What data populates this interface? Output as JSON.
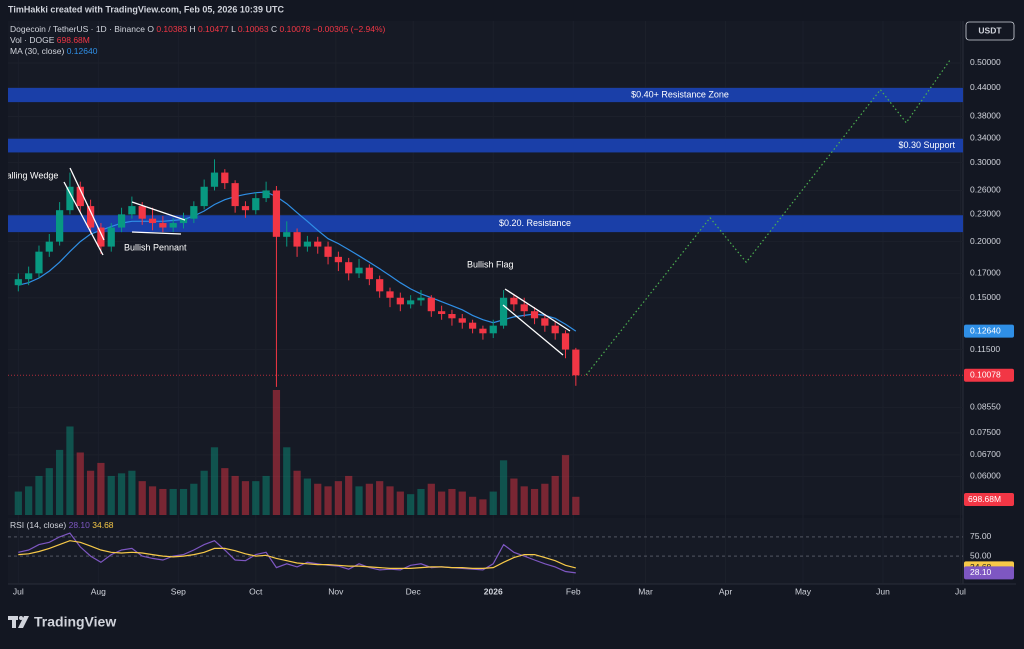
{
  "watermark": "TimHakki created with TradingView.com, Feb 05, 2026 10:39 UTC",
  "logo": "TradingView",
  "currency": "USDT",
  "chart_data": {
    "type": "candlestick",
    "symbol": "Dogecoin / TetherUS · 1D · Binance",
    "ohlc": [
      {
        "label": "O",
        "value": "0.10383"
      },
      {
        "label": "H",
        "value": "0.10477"
      },
      {
        "label": "L",
        "value": "0.10063"
      },
      {
        "label": "C",
        "value": "0.10078"
      }
    ],
    "change": "−0.00305 (−2.94%)",
    "x": [
      "2025-07-01",
      "2025-07-05",
      "2025-07-09",
      "2025-07-13",
      "2025-07-17",
      "2025-07-21",
      "2025-07-25",
      "2025-07-29",
      "2025-08-02",
      "2025-08-06",
      "2025-08-10",
      "2025-08-14",
      "2025-08-18",
      "2025-08-22",
      "2025-08-26",
      "2025-08-30",
      "2025-09-03",
      "2025-09-07",
      "2025-09-11",
      "2025-09-15",
      "2025-09-19",
      "2025-09-23",
      "2025-09-27",
      "2025-10-01",
      "2025-10-05",
      "2025-10-09",
      "2025-10-13",
      "2025-10-17",
      "2025-10-21",
      "2025-10-25",
      "2025-10-29",
      "2025-11-02",
      "2025-11-06",
      "2025-11-10",
      "2025-11-14",
      "2025-11-18",
      "2025-11-22",
      "2025-11-26",
      "2025-11-30",
      "2025-12-04",
      "2025-12-08",
      "2025-12-12",
      "2025-12-16",
      "2025-12-20",
      "2025-12-24",
      "2025-12-28",
      "2026-01-01",
      "2026-01-05",
      "2026-01-09",
      "2026-01-13",
      "2026-01-17",
      "2026-01-21",
      "2026-01-25",
      "2026-01-29",
      "2026-02-02"
    ],
    "open": [
      0.16,
      0.165,
      0.17,
      0.19,
      0.2,
      0.235,
      0.265,
      0.24,
      0.215,
      0.195,
      0.215,
      0.23,
      0.24,
      0.225,
      0.22,
      0.215,
      0.22,
      0.225,
      0.24,
      0.265,
      0.285,
      0.27,
      0.24,
      0.235,
      0.25,
      0.26,
      0.205,
      0.21,
      0.195,
      0.2,
      0.195,
      0.185,
      0.18,
      0.17,
      0.175,
      0.165,
      0.155,
      0.15,
      0.145,
      0.148,
      0.15,
      0.14,
      0.138,
      0.135,
      0.132,
      0.128,
      0.125,
      0.13,
      0.15,
      0.145,
      0.14,
      0.135,
      0.13,
      0.125,
      0.115
    ],
    "high": [
      0.17,
      0.176,
      0.196,
      0.208,
      0.245,
      0.285,
      0.272,
      0.248,
      0.22,
      0.22,
      0.238,
      0.252,
      0.245,
      0.238,
      0.228,
      0.226,
      0.232,
      0.246,
      0.275,
      0.305,
      0.29,
      0.274,
      0.246,
      0.258,
      0.272,
      0.266,
      0.222,
      0.214,
      0.206,
      0.205,
      0.2,
      0.19,
      0.184,
      0.183,
      0.178,
      0.168,
      0.158,
      0.154,
      0.152,
      0.156,
      0.152,
      0.144,
      0.141,
      0.138,
      0.134,
      0.13,
      0.134,
      0.156,
      0.153,
      0.15,
      0.143,
      0.138,
      0.133,
      0.127,
      0.116
    ],
    "low": [
      0.155,
      0.16,
      0.166,
      0.185,
      0.196,
      0.23,
      0.232,
      0.208,
      0.188,
      0.19,
      0.21,
      0.225,
      0.218,
      0.212,
      0.21,
      0.21,
      0.214,
      0.22,
      0.236,
      0.26,
      0.262,
      0.232,
      0.226,
      0.23,
      0.245,
      0.095,
      0.195,
      0.185,
      0.19,
      0.188,
      0.178,
      0.172,
      0.164,
      0.166,
      0.16,
      0.15,
      0.143,
      0.14,
      0.142,
      0.144,
      0.136,
      0.134,
      0.13,
      0.128,
      0.125,
      0.121,
      0.122,
      0.128,
      0.14,
      0.136,
      0.131,
      0.126,
      0.121,
      0.11,
      0.0955
    ],
    "close": [
      0.165,
      0.17,
      0.19,
      0.2,
      0.235,
      0.265,
      0.24,
      0.215,
      0.195,
      0.215,
      0.23,
      0.24,
      0.225,
      0.22,
      0.215,
      0.22,
      0.225,
      0.24,
      0.265,
      0.285,
      0.27,
      0.24,
      0.235,
      0.25,
      0.26,
      0.205,
      0.21,
      0.195,
      0.2,
      0.195,
      0.185,
      0.18,
      0.17,
      0.175,
      0.165,
      0.155,
      0.15,
      0.145,
      0.148,
      0.15,
      0.14,
      0.138,
      0.135,
      0.132,
      0.128,
      0.125,
      0.13,
      0.15,
      0.145,
      0.14,
      0.135,
      0.13,
      0.125,
      0.115,
      0.10078
    ],
    "up_color": "#089981",
    "down_color": "#f23645",
    "ma": {
      "title": "MA (30, close)",
      "color": "#2f8fe6",
      "last": {
        "value": 0.1264,
        "label": "0.12640"
      },
      "values": [
        0.16,
        0.162,
        0.166,
        0.172,
        0.18,
        0.19,
        0.2,
        0.208,
        0.212,
        0.216,
        0.22,
        0.222,
        0.222,
        0.222,
        0.222,
        0.223,
        0.224,
        0.228,
        0.234,
        0.242,
        0.248,
        0.252,
        0.255,
        0.257,
        0.258,
        0.252,
        0.243,
        0.232,
        0.222,
        0.212,
        0.203,
        0.198,
        0.192,
        0.186,
        0.18,
        0.174,
        0.168,
        0.162,
        0.157,
        0.153,
        0.15,
        0.147,
        0.144,
        0.141,
        0.137,
        0.134,
        0.132,
        0.134,
        0.136,
        0.137,
        0.138,
        0.137,
        0.135,
        0.131,
        0.1264
      ]
    },
    "volume": {
      "title": "Vol · DOGE",
      "last": {
        "value": 698.68,
        "label": "698.68M"
      },
      "values": [
        900,
        1100,
        1500,
        1800,
        2500,
        3400,
        2400,
        1700,
        2000,
        1500,
        1600,
        1700,
        1300,
        1100,
        1000,
        1000,
        1000,
        1200,
        1700,
        2600,
        1800,
        1500,
        1300,
        1300,
        1500,
        4800,
        2600,
        1700,
        1400,
        1200,
        1100,
        1300,
        1500,
        1100,
        1200,
        1300,
        1100,
        900,
        800,
        1000,
        1200,
        900,
        1000,
        900,
        700,
        600,
        900,
        2100,
        1400,
        1100,
        1000,
        1200,
        1500,
        2300,
        698.68
      ]
    },
    "last_price": {
      "value": 0.10078,
      "label": "0.10078"
    },
    "xlim": [
      "2025-06-27",
      "2026-07-02"
    ],
    "xticks": [
      {
        "value": "2025-07-01",
        "label": "Jul"
      },
      {
        "value": "2025-08-01",
        "label": "Aug"
      },
      {
        "value": "2025-09-01",
        "label": "Sep"
      },
      {
        "value": "2025-10-01",
        "label": "Oct"
      },
      {
        "value": "2025-11-01",
        "label": "Nov"
      },
      {
        "value": "2025-12-01",
        "label": "Dec"
      },
      {
        "value": "2026-01-01",
        "label": "2026"
      },
      {
        "value": "2026-02-01",
        "label": "Feb"
      },
      {
        "value": "2026-03-01",
        "label": "Mar"
      },
      {
        "value": "2026-04-01",
        "label": "Apr"
      },
      {
        "value": "2026-05-01",
        "label": "May"
      },
      {
        "value": "2026-06-01",
        "label": "Jun"
      },
      {
        "value": "2026-07-01",
        "label": "Jul"
      }
    ],
    "log_scale": true,
    "ylim": [
      0.05,
      0.62
    ],
    "yticks": [
      {
        "value": 0.5,
        "label": "0.50000"
      },
      {
        "value": 0.44,
        "label": "0.44000"
      },
      {
        "value": 0.38,
        "label": "0.38000"
      },
      {
        "value": 0.34,
        "label": "0.34000"
      },
      {
        "value": 0.3,
        "label": "0.30000"
      },
      {
        "value": 0.26,
        "label": "0.26000"
      },
      {
        "value": 0.23,
        "label": "0.23000"
      },
      {
        "value": 0.2,
        "label": "0.20000"
      },
      {
        "value": 0.17,
        "label": "0.17000"
      },
      {
        "value": 0.15,
        "label": "0.15000"
      },
      {
        "value": 0.115,
        "label": "0.11500"
      },
      {
        "value": 0.0855,
        "label": "0.08550"
      },
      {
        "value": 0.075,
        "label": "0.07500"
      },
      {
        "value": 0.067,
        "label": "0.06700"
      },
      {
        "value": 0.06,
        "label": "0.06000"
      }
    ],
    "zones": [
      {
        "label": "$0.40+ Resistance Zone",
        "range": [
          0.409,
          0.44
        ]
      },
      {
        "label": "$0.30 Support",
        "range": [
          0.316,
          0.339
        ]
      },
      {
        "label": "$0.20. Resistance",
        "range": [
          0.21,
          0.229
        ]
      }
    ],
    "annotations": [
      "Falling Wedge",
      "Bullish Pennant",
      "Bullish Flag"
    ],
    "projection": {
      "color": "#4caf50",
      "x": [
        "2026-02-06",
        "2026-03-26",
        "2026-04-09",
        "2026-05-31",
        "2026-06-10",
        "2026-06-27"
      ],
      "y": [
        0.101,
        0.226,
        0.18,
        0.436,
        0.368,
        0.508
      ]
    },
    "rsi": {
      "title": "RSI (14, close)",
      "color": "#7e57c2",
      "ma_color": "#f7c948",
      "ylim": [
        15,
        97
      ],
      "yticks": [
        {
          "value": 75,
          "label": "75.00"
        },
        {
          "value": 50,
          "label": "50.00"
        }
      ],
      "last": {
        "value": 28.1,
        "label": "28.10"
      },
      "ma_last": {
        "value": 34.68,
        "label": "34.68"
      },
      "values": [
        55,
        58,
        65,
        68,
        75,
        80,
        62,
        50,
        42,
        52,
        58,
        60,
        50,
        47,
        45,
        50,
        52,
        58,
        65,
        70,
        58,
        45,
        44,
        52,
        55,
        35,
        40,
        36,
        42,
        40,
        38,
        37,
        33,
        40,
        35,
        32,
        33,
        32,
        38,
        40,
        35,
        36,
        35,
        34,
        33,
        32,
        40,
        65,
        55,
        50,
        45,
        40,
        36,
        30,
        28.1
      ],
      "ma": [
        52,
        53,
        56,
        60,
        65,
        70,
        68,
        63,
        58,
        55,
        54,
        55,
        54,
        52,
        50,
        49,
        50,
        52,
        55,
        60,
        60,
        57,
        53,
        50,
        51,
        47,
        44,
        41,
        40,
        39,
        39,
        38,
        37,
        37,
        36,
        35,
        34,
        34,
        34,
        35,
        36,
        36,
        35,
        35,
        34,
        34,
        35,
        42,
        48,
        52,
        52,
        48,
        44,
        38,
        34.68
      ]
    }
  }
}
